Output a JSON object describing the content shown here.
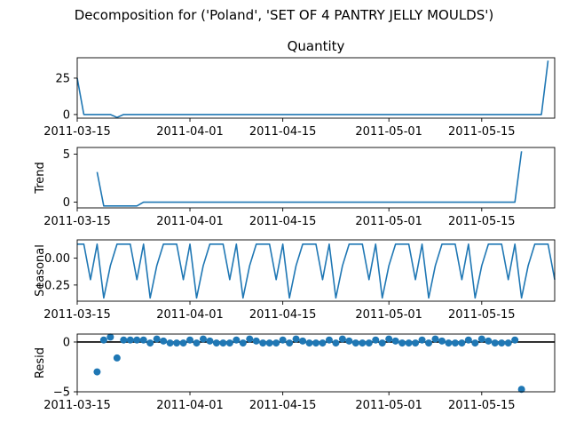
{
  "figure": {
    "suptitle": "Decomposition for ('Poland', 'SET OF 4 PANTRY JELLY MOULDS')"
  },
  "colors": {
    "series": "#1f77b4",
    "axis": "#000000",
    "zero_line": "#000000"
  },
  "chart_data": [
    {
      "type": "line",
      "title": "Quantity",
      "ylabel": "",
      "x_start": "2011-03-15",
      "x_end": "2011-05-26",
      "xlim": [
        "2011-03-15",
        "2011-05-26"
      ],
      "ylim": [
        -2.5,
        39
      ],
      "y_ticks": [
        "0",
        "25"
      ],
      "y_tick_values": [
        0,
        25
      ],
      "x_ticks": [
        "2011-03-15",
        "2011-04-01",
        "2011-04-15",
        "2011-05-01",
        "2011-05-15"
      ],
      "values": [
        25,
        0,
        0,
        0,
        0,
        0,
        -2,
        0,
        0,
        0,
        0,
        0,
        0,
        0,
        0,
        0,
        0,
        0,
        0,
        0,
        0,
        0,
        0,
        0,
        0,
        0,
        0,
        0,
        0,
        0,
        0,
        0,
        0,
        0,
        0,
        0,
        0,
        0,
        0,
        0,
        0,
        0,
        0,
        0,
        0,
        0,
        0,
        0,
        0,
        0,
        0,
        0,
        0,
        0,
        0,
        0,
        0,
        0,
        0,
        0,
        0,
        0,
        0,
        0,
        0,
        0,
        0,
        0,
        0,
        0,
        0,
        37
      ]
    },
    {
      "type": "line",
      "title": "",
      "ylabel": "Trend",
      "x_start": "2011-03-15",
      "x_end": "2011-05-26",
      "xlim": [
        "2011-03-15",
        "2011-05-26"
      ],
      "ylim": [
        -0.6,
        5.7
      ],
      "y_ticks": [
        "0",
        "5"
      ],
      "y_tick_values": [
        0,
        5
      ],
      "x_ticks": [
        "2011-03-15",
        "2011-04-01",
        "2011-04-15",
        "2011-05-01",
        "2011-05-15"
      ],
      "values": [
        null,
        null,
        null,
        3.14,
        -0.4,
        -0.4,
        -0.4,
        -0.4,
        -0.4,
        -0.4,
        0,
        0,
        0,
        0,
        0,
        0,
        0,
        0,
        0,
        0,
        0,
        0,
        0,
        0,
        0,
        0,
        0,
        0,
        0,
        0,
        0,
        0,
        0,
        0,
        0,
        0,
        0,
        0,
        0,
        0,
        0,
        0,
        0,
        0,
        0,
        0,
        0,
        0,
        0,
        0,
        0,
        0,
        0,
        0,
        0,
        0,
        0,
        0,
        0,
        0,
        0,
        0,
        0,
        0,
        0,
        0,
        0,
        5.3,
        null,
        null,
        null
      ]
    },
    {
      "type": "line",
      "title": "",
      "ylabel": "Seasonal",
      "x_start": "2011-03-15",
      "x_end": "2011-05-26",
      "xlim": [
        "2011-03-15",
        "2011-05-26"
      ],
      "ylim": [
        -0.4,
        0.17
      ],
      "y_ticks": [
        "0.00",
        "−0.25"
      ],
      "y_tick_values": [
        0,
        -0.25
      ],
      "x_ticks": [
        "2011-03-15",
        "2011-04-01",
        "2011-04-15",
        "2011-05-01",
        "2011-05-15"
      ],
      "pattern": [
        0.13,
        0.13,
        -0.2,
        0.13,
        -0.37,
        -0.07,
        0.13
      ],
      "values": []
    },
    {
      "type": "scatter",
      "title": "",
      "ylabel": "Resid",
      "x_start": "2011-03-15",
      "x_end": "2011-05-26",
      "xlim": [
        "2011-03-15",
        "2011-05-26"
      ],
      "ylim": [
        -5,
        0.8
      ],
      "y_ticks": [
        "0",
        "−5"
      ],
      "y_tick_values": [
        0,
        -5
      ],
      "x_ticks": [
        "2011-03-15",
        "2011-04-01",
        "2011-04-15",
        "2011-05-01",
        "2011-05-15"
      ],
      "zero_line": true,
      "values": [
        null,
        null,
        null,
        -3.0,
        0.2,
        0.5,
        -1.6,
        0.2,
        0.2,
        0.2,
        0.2,
        -0.1,
        0.3,
        0.1,
        -0.1,
        -0.1,
        -0.1,
        0.2,
        -0.1,
        0.3,
        0.1,
        -0.1,
        -0.1,
        -0.1,
        0.2,
        -0.1,
        0.3,
        0.1,
        -0.1,
        -0.1,
        -0.1,
        0.2,
        -0.1,
        0.3,
        0.1,
        -0.1,
        -0.1,
        -0.1,
        0.2,
        -0.1,
        0.3,
        0.1,
        -0.1,
        -0.1,
        -0.1,
        0.2,
        -0.1,
        0.3,
        0.1,
        -0.1,
        -0.1,
        -0.1,
        0.2,
        -0.1,
        0.3,
        0.1,
        -0.1,
        -0.1,
        -0.1,
        0.2,
        -0.1,
        0.3,
        0.1,
        -0.1,
        -0.1,
        -0.1,
        0.2,
        -4.75,
        null,
        null,
        null
      ]
    }
  ]
}
